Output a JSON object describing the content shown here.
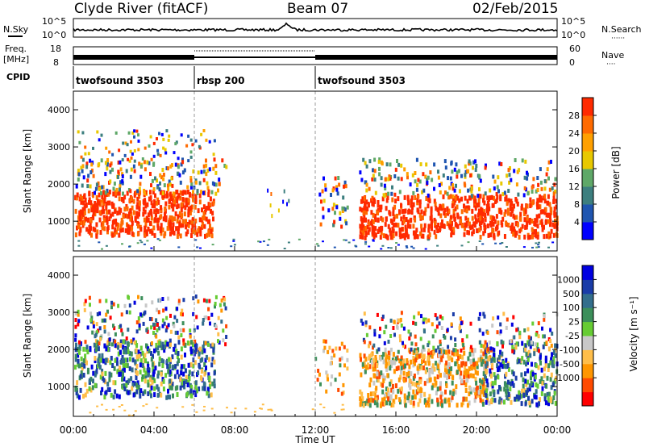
{
  "header": {
    "station": "Clyde River (fitACF)",
    "beam": "Beam 07",
    "date": "02/Feb/2015"
  },
  "labels": {
    "nsky": "N.Sky",
    "freq_line1": "Freq.",
    "freq_line2": "[MHz]",
    "cpid": "CPID",
    "nsearch": "N.Search",
    "nave": "Nave",
    "dots": "······",
    "dots_short": "····"
  },
  "noise_ticks": {
    "top": "10^5",
    "bottom": "10^0",
    "right_top": "10^5",
    "right_bottom": "10^0"
  },
  "freq_ticks": {
    "left": [
      "18",
      "8"
    ],
    "right": [
      "60",
      "0"
    ]
  },
  "cpid_segments": [
    {
      "label": "twofsound 3503",
      "start_h": 0,
      "end_h": 6
    },
    {
      "label": "rbsp 200",
      "start_h": 6,
      "end_h": 12
    },
    {
      "label": "twofsound 3503",
      "start_h": 12,
      "end_h": 24
    }
  ],
  "colors": {
    "power": [
      "#0000ff",
      "#1f55b0",
      "#3d7f7f",
      "#5fa868",
      "#e8c800",
      "#ffa000",
      "#ff6a00",
      "#ff2a00"
    ],
    "velocity": [
      "#ff0000",
      "#ff4a00",
      "#ff9600",
      "#ffbe4a",
      "#c8c8c8",
      "#66cc33",
      "#3c8f5a",
      "#336e8c",
      "#1a3ca8",
      "#0000e0"
    ]
  },
  "chart_data": [
    {
      "type": "heatmap",
      "name": "power",
      "ylabel": "Slant Range [km]",
      "yticks": [
        "1000",
        "2000",
        "3000",
        "4000"
      ],
      "ylim": [
        200,
        4500
      ],
      "colorbar_label": "Power [dB]",
      "colorbar_ticks": [
        "4",
        "8",
        "12",
        "16",
        "20",
        "24",
        "28"
      ]
    },
    {
      "type": "heatmap",
      "name": "velocity",
      "ylabel": "Slant Range [km]",
      "yticks": [
        "1000",
        "2000",
        "3000",
        "4000"
      ],
      "ylim": [
        200,
        4500
      ],
      "colorbar_label": "Velocity [m s⁻¹]",
      "colorbar_ticks": [
        "1000",
        "500",
        "100",
        "25",
        "-25",
        "-100",
        "-500",
        "-1000"
      ]
    }
  ],
  "xaxis": {
    "label": "Time UT",
    "ticks": [
      "00:00",
      "04:00",
      "08:00",
      "12:00",
      "16:00",
      "20:00",
      "00:00"
    ]
  }
}
